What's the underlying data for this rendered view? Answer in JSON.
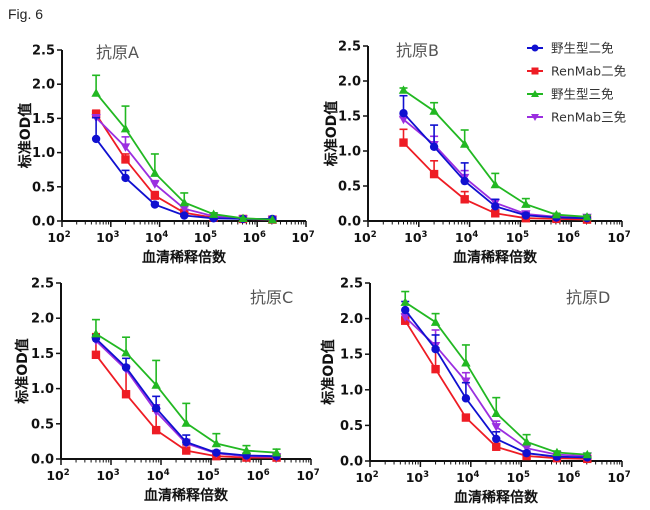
{
  "figure_label": "Fig. 6",
  "legend": {
    "placement": "top-right of panel B",
    "entries": [
      {
        "name": "野生型二免",
        "color": "#1010d0",
        "marker": "circle"
      },
      {
        "name": "RenMab二免",
        "color": "#ee1c24",
        "marker": "square"
      },
      {
        "name": "野生型三免",
        "color": "#22b822",
        "marker": "triangle-up"
      },
      {
        "name": "RenMab三免",
        "color": "#9b2ee0",
        "marker": "triangle-down"
      }
    ]
  },
  "chart_data": [
    {
      "type": "line",
      "title": "抗原A",
      "title_position": "top-left",
      "xlabel": "血清稀释倍数",
      "ylabel": "标准OD值",
      "xscale": "log",
      "xlim": [
        100,
        10000000
      ],
      "ylim": [
        0,
        2.5
      ],
      "yticks": [
        "0.0",
        "0.5",
        "1.0",
        "1.5",
        "2.0",
        "2.5"
      ],
      "xticks": [
        "10^2",
        "10^3",
        "10^4",
        "10^5",
        "10^6",
        "10^7"
      ],
      "grid": false,
      "x": [
        500,
        2000,
        8000,
        32000,
        128000,
        512000,
        2048000
      ],
      "series": [
        {
          "name": "野生型二免",
          "values": [
            1.2,
            0.63,
            0.24,
            0.08,
            0.04,
            0.03,
            0.03
          ],
          "errors": [
            0.31,
            0.11,
            0.03,
            0.02,
            0.01,
            0.01,
            0.01
          ]
        },
        {
          "name": "RenMab二免",
          "values": [
            1.56,
            0.9,
            0.37,
            0.12,
            0.05,
            0.03,
            0.02
          ],
          "errors": [
            0.06,
            0.08,
            0.06,
            0.02,
            0.01,
            0.01,
            0.01
          ]
        },
        {
          "name": "野生型三免",
          "values": [
            1.87,
            1.35,
            0.7,
            0.27,
            0.1,
            0.04,
            0.02
          ],
          "errors": [
            0.26,
            0.33,
            0.28,
            0.14,
            0.02,
            0.01,
            0.01
          ]
        },
        {
          "name": "RenMab三免",
          "values": [
            1.51,
            1.08,
            0.54,
            0.18,
            0.07,
            0.03,
            0.02
          ],
          "errors": [
            0.04,
            0.15,
            0.05,
            0.03,
            0.01,
            0.01,
            0.01
          ]
        }
      ]
    },
    {
      "type": "line",
      "title": "抗原B",
      "title_position": "top-left",
      "xlabel": "血清稀释倍数",
      "ylabel": "标准OD值",
      "xscale": "log",
      "xlim": [
        100,
        10000000
      ],
      "ylim": [
        0,
        2.5
      ],
      "yticks": [
        "0.0",
        "0.5",
        "1.0",
        "1.5",
        "2.0",
        "2.5"
      ],
      "xticks": [
        "10^2",
        "10^3",
        "10^4",
        "10^5",
        "10^6",
        "10^7"
      ],
      "grid": false,
      "x": [
        500,
        2000,
        8000,
        32000,
        128000,
        512000,
        2048000
      ],
      "series": [
        {
          "name": "野生型二免",
          "values": [
            1.54,
            1.06,
            0.57,
            0.21,
            0.08,
            0.05,
            0.04
          ],
          "errors": [
            0.25,
            0.31,
            0.26,
            0.1,
            0.03,
            0.01,
            0.01
          ]
        },
        {
          "name": "RenMab二免",
          "values": [
            1.12,
            0.67,
            0.31,
            0.11,
            0.04,
            0.03,
            0.02
          ],
          "errors": [
            0.19,
            0.19,
            0.11,
            0.03,
            0.01,
            0.01,
            0.01
          ]
        },
        {
          "name": "野生型三免",
          "values": [
            1.87,
            1.57,
            1.1,
            0.52,
            0.24,
            0.09,
            0.06
          ],
          "errors": [
            0.03,
            0.12,
            0.2,
            0.16,
            0.08,
            0.02,
            0.02
          ]
        },
        {
          "name": "RenMab三免",
          "values": [
            1.45,
            1.09,
            0.62,
            0.26,
            0.1,
            0.06,
            0.05
          ],
          "errors": [
            0.03,
            0.12,
            0.1,
            0.05,
            0.02,
            0.01,
            0.01
          ]
        }
      ]
    },
    {
      "type": "line",
      "title": "抗原C",
      "title_position": "top-right",
      "xlabel": "血清稀释倍数",
      "ylabel": "标准OD值",
      "xscale": "log",
      "xlim": [
        100,
        10000000
      ],
      "ylim": [
        0,
        2.5
      ],
      "yticks": [
        "0.0",
        "0.5",
        "1.0",
        "1.5",
        "2.0",
        "2.5"
      ],
      "xticks": [
        "10^2",
        "10^3",
        "10^4",
        "10^5",
        "10^6",
        "10^7"
      ],
      "grid": false,
      "x": [
        500,
        2000,
        8000,
        32000,
        128000,
        512000,
        2048000
      ],
      "series": [
        {
          "name": "野生型二免",
          "values": [
            1.71,
            1.3,
            0.72,
            0.24,
            0.09,
            0.05,
            0.04
          ],
          "errors": [
            0.05,
            0.13,
            0.17,
            0.1,
            0.02,
            0.01,
            0.01
          ]
        },
        {
          "name": "RenMab二免",
          "values": [
            1.48,
            0.92,
            0.41,
            0.12,
            0.04,
            0.02,
            0.02
          ],
          "errors": [
            0.3,
            0.37,
            0.27,
            0.08,
            0.02,
            0.01,
            0.01
          ]
        },
        {
          "name": "野生型三免",
          "values": [
            1.78,
            1.51,
            1.05,
            0.51,
            0.22,
            0.12,
            0.09
          ],
          "errors": [
            0.2,
            0.22,
            0.35,
            0.28,
            0.14,
            0.07,
            0.05
          ]
        },
        {
          "name": "RenMab三免",
          "values": [
            1.68,
            1.27,
            0.67,
            0.22,
            0.08,
            0.04,
            0.03
          ],
          "errors": [
            0.04,
            0.06,
            0.1,
            0.06,
            0.02,
            0.01,
            0.01
          ]
        }
      ]
    },
    {
      "type": "line",
      "title": "抗原D",
      "title_position": "top-right",
      "xlabel": "血清稀释倍数",
      "ylabel": "标准OD值",
      "xscale": "log",
      "xlim": [
        100,
        10000000
      ],
      "ylim": [
        0,
        2.5
      ],
      "yticks": [
        "0.0",
        "0.5",
        "1.0",
        "1.5",
        "2.0",
        "2.5"
      ],
      "xticks": [
        "10^2",
        "10^3",
        "10^4",
        "10^5",
        "10^6",
        "10^7"
      ],
      "grid": false,
      "x": [
        500,
        2000,
        8000,
        32000,
        128000,
        512000,
        2048000
      ],
      "series": [
        {
          "name": "野生型二免",
          "values": [
            2.12,
            1.57,
            0.88,
            0.31,
            0.11,
            0.06,
            0.05
          ],
          "errors": [
            0.12,
            0.2,
            0.22,
            0.1,
            0.03,
            0.01,
            0.01
          ]
        },
        {
          "name": "RenMab二免",
          "values": [
            1.97,
            1.29,
            0.61,
            0.2,
            0.07,
            0.04,
            0.03
          ],
          "errors": [
            0.06,
            0.3,
            0.03,
            0.02,
            0.01,
            0.01,
            0.01
          ]
        },
        {
          "name": "野生型三免",
          "values": [
            2.23,
            1.95,
            1.38,
            0.67,
            0.27,
            0.12,
            0.09
          ],
          "errors": [
            0.15,
            0.12,
            0.25,
            0.22,
            0.1,
            0.02,
            0.02
          ]
        },
        {
          "name": "RenMab三免",
          "values": [
            2.02,
            1.62,
            1.12,
            0.48,
            0.18,
            0.09,
            0.07
          ],
          "errors": [
            0.05,
            0.22,
            0.12,
            0.08,
            0.03,
            0.01,
            0.01
          ]
        }
      ]
    }
  ]
}
